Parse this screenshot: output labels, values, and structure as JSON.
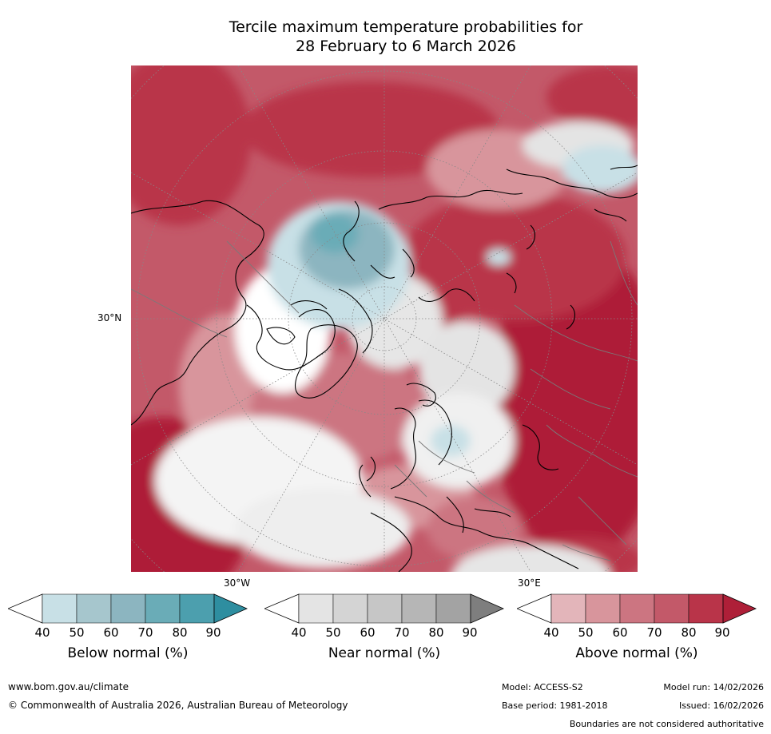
{
  "title": {
    "line1": "Tercile maximum temperature probabilities for",
    "line2": "28 February to 6 March 2026"
  },
  "map": {
    "lat_label": "30°N",
    "lon_labels": [
      "30°W",
      "30°E"
    ]
  },
  "colorbars": [
    {
      "label": "Below normal (%)",
      "ticks": [
        "40",
        "50",
        "60",
        "70",
        "80",
        "90"
      ],
      "colors": [
        "#ffffff",
        "#c8e0e6",
        "#a6c6cd",
        "#8cb5c0",
        "#6aacb7",
        "#4c9fae",
        "#2e8ea0"
      ]
    },
    {
      "label": "Near normal (%)",
      "ticks": [
        "40",
        "50",
        "60",
        "70",
        "80",
        "90"
      ],
      "colors": [
        "#ffffff",
        "#e4e4e4",
        "#d4d4d4",
        "#c6c6c6",
        "#b6b6b6",
        "#a3a3a3",
        "#7e7e7e"
      ]
    },
    {
      "label": "Above normal (%)",
      "ticks": [
        "40",
        "50",
        "60",
        "70",
        "80",
        "90"
      ],
      "colors": [
        "#ffffff",
        "#e3b5ba",
        "#d8959c",
        "#cc7581",
        "#c35969",
        "#b93449",
        "#ae1f38"
      ]
    }
  ],
  "footer": {
    "website": "www.bom.gov.au/climate",
    "copyright": "© Commonwealth of Australia 2026, Australian Bureau of Meteorology",
    "model": "Model: ACCESS-S2",
    "model_run": "Model run: 14/02/2026",
    "base_period": "Base period: 1981-2018",
    "issued": "Issued: 16/02/2026",
    "disclaimer": "Boundaries are not considered authoritative"
  }
}
